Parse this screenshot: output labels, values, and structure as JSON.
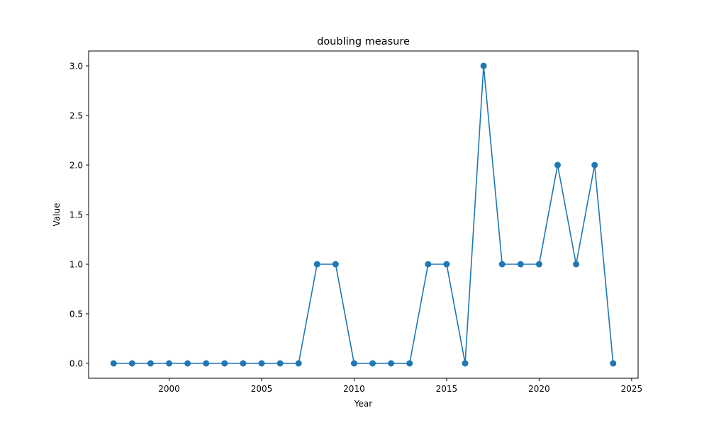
{
  "chart_data": {
    "type": "line",
    "title": "doubling measure",
    "xlabel": "Year",
    "ylabel": "Value",
    "x": [
      1997,
      1998,
      1999,
      2000,
      2001,
      2002,
      2003,
      2004,
      2005,
      2006,
      2007,
      2008,
      2009,
      2010,
      2011,
      2012,
      2013,
      2014,
      2015,
      2016,
      2017,
      2018,
      2019,
      2020,
      2021,
      2022,
      2023,
      2024
    ],
    "series": [
      {
        "values": [
          0,
          0,
          0,
          0,
          0,
          0,
          0,
          0,
          0,
          0,
          0,
          1,
          1,
          0,
          0,
          0,
          0,
          1,
          1,
          0,
          3,
          1,
          1,
          1,
          2,
          1,
          2,
          0
        ]
      }
    ],
    "xlim": [
      1995.65,
      2025.35
    ],
    "ylim": [
      -0.15,
      3.15
    ],
    "xticks": [
      2000,
      2005,
      2010,
      2015,
      2020,
      2025
    ],
    "xtick_labels": [
      "2000",
      "2005",
      "2010",
      "2015",
      "2020",
      "2025"
    ],
    "yticks": [
      0,
      0.5,
      1,
      1.5,
      2,
      2.5,
      3
    ],
    "ytick_labels": [
      "0.0",
      "0.5",
      "1.0",
      "1.5",
      "2.0",
      "2.5",
      "3.0"
    ],
    "grid": false,
    "legend": "none",
    "colors": {
      "series": "#1f77b4",
      "axes": "#000000"
    },
    "marker": "circle"
  }
}
